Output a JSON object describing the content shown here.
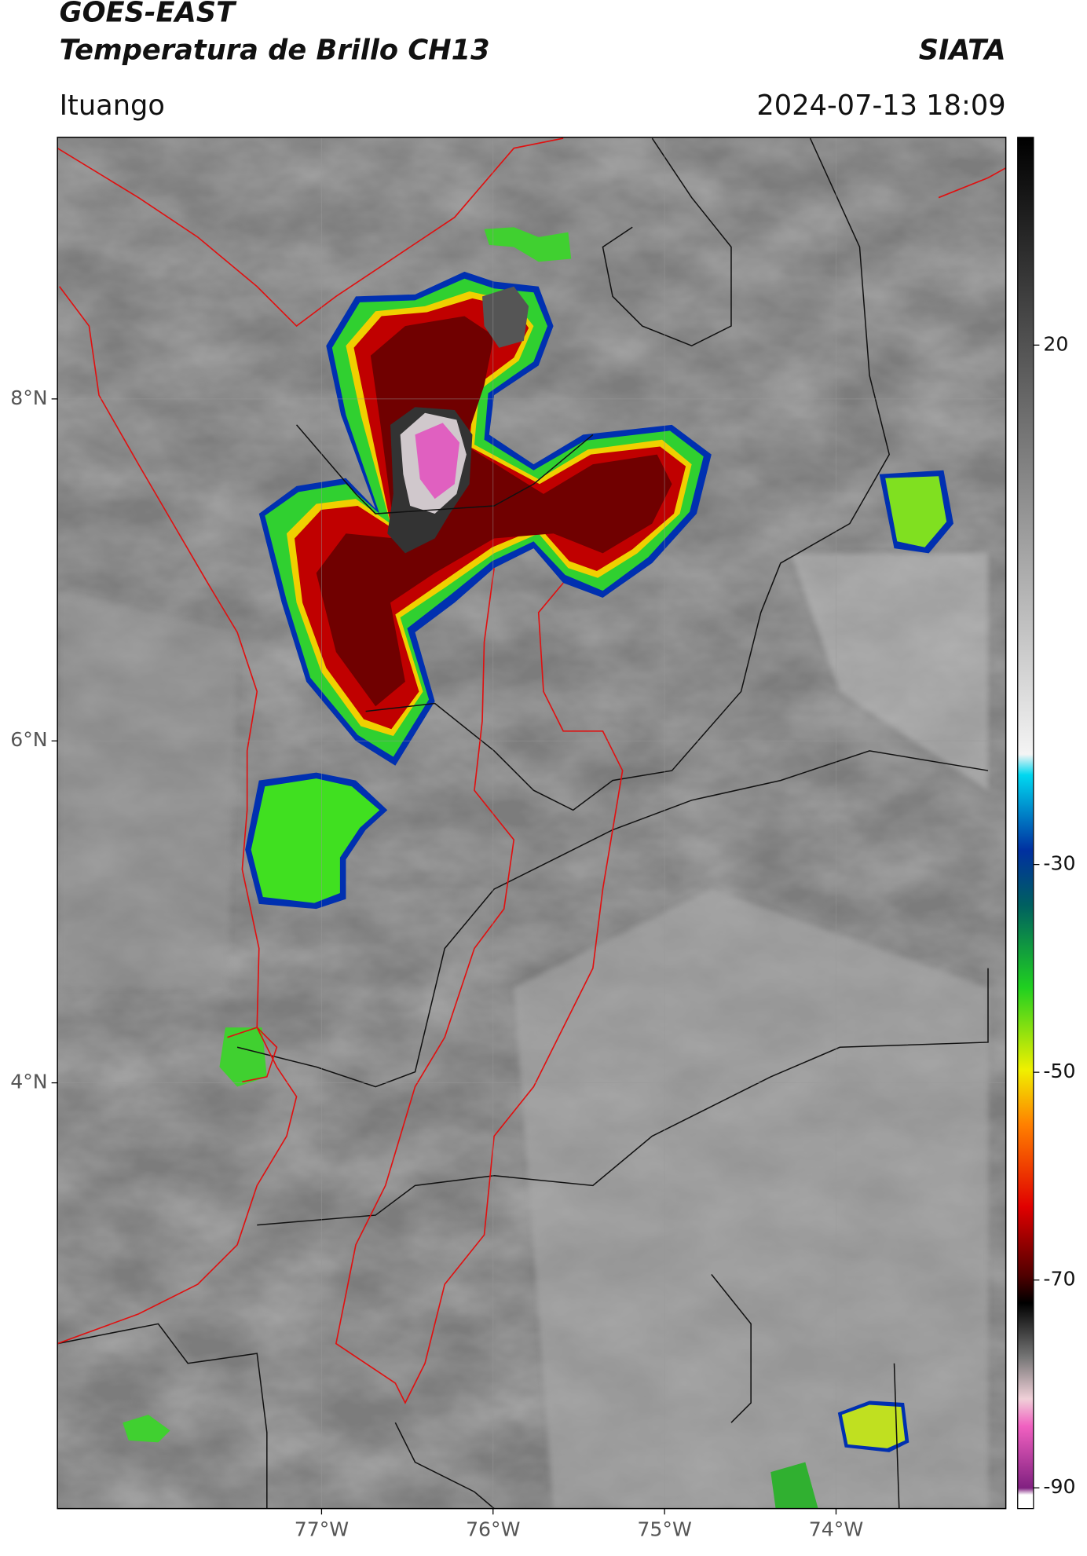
{
  "chart_data": {
    "type": "map",
    "title": "GOES-EAST",
    "subtitle": "Temperatura de Brillo CH13",
    "source": "SIATA",
    "location": "Ituango",
    "datetime": "2024-07-13 18:09",
    "xlim": [
      -78.54,
      -73.01
    ],
    "ylim": [
      1.51,
      9.53
    ],
    "xticks": [
      {
        "value": -77,
        "label": "77°W"
      },
      {
        "value": -76,
        "label": "76°W"
      },
      {
        "value": -75,
        "label": "75°W"
      },
      {
        "value": -74,
        "label": "74°W"
      }
    ],
    "yticks": [
      {
        "value": 8,
        "label": "8°N"
      },
      {
        "value": 6,
        "label": "6°N"
      },
      {
        "value": 4,
        "label": "4°N"
      }
    ],
    "colorbar": {
      "clim": [
        -92,
        40
      ],
      "ticks": [
        20,
        -30,
        -50,
        -70,
        -90
      ]
    },
    "grid": true
  }
}
